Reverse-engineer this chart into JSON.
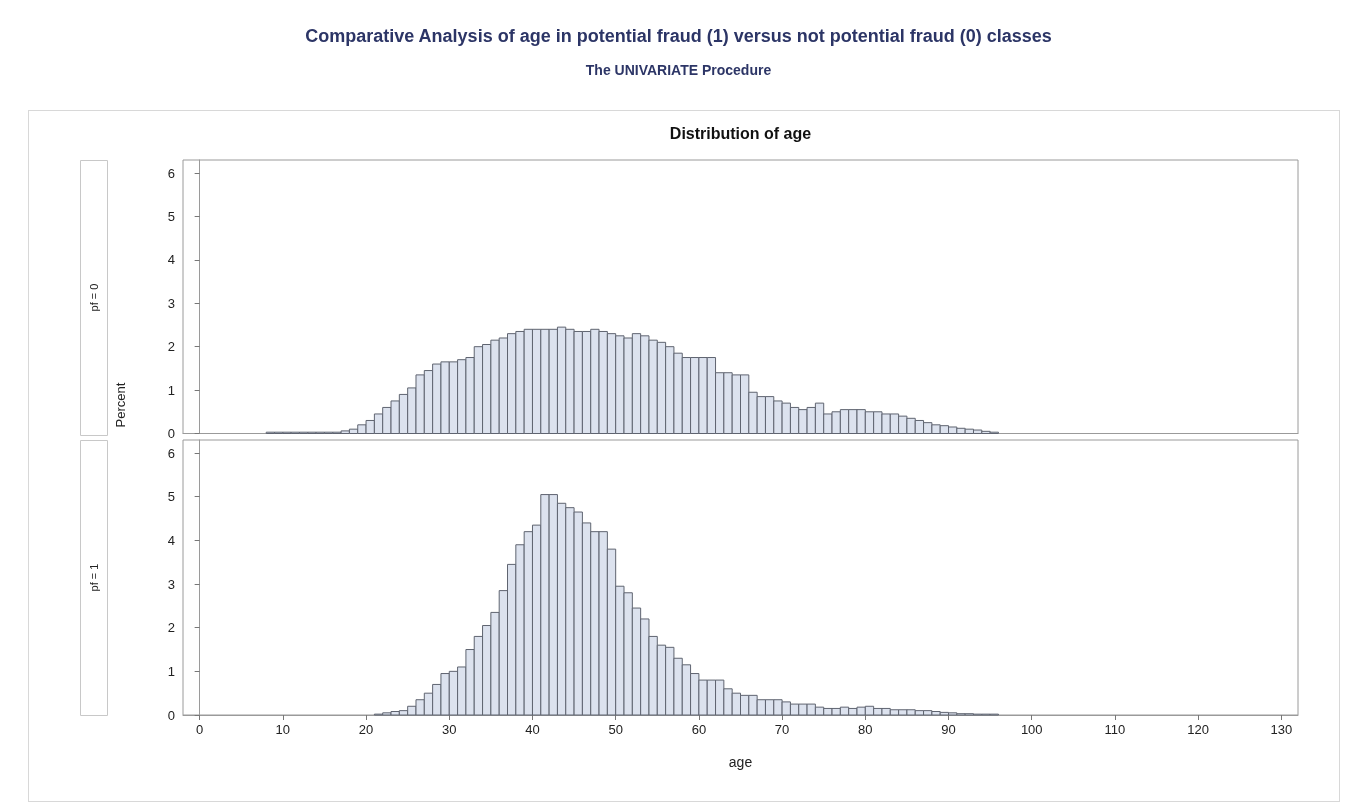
{
  "chart_data": [
    {
      "type": "histogram",
      "title": "Comparative Analysis of age in potential fraud (1) versus not potential fraud (0) classes",
      "subtitle": "The UNIVARIATE Procedure",
      "ylabel": "Percent",
      "annotations": [
        "Distribution of age",
        "pf = 0"
      ],
      "color": "#dce2ee",
      "bins": [
        8,
        9,
        10,
        11,
        12,
        13,
        14,
        15,
        16,
        17,
        18,
        19,
        20,
        21,
        22,
        23,
        24,
        25,
        26,
        27,
        28,
        29,
        30,
        31,
        32,
        33,
        34,
        35,
        36,
        37,
        38,
        39,
        40,
        41,
        42,
        43,
        44,
        45,
        46,
        47,
        48,
        49,
        50,
        51,
        52,
        53,
        54,
        55,
        56,
        57,
        58,
        59,
        60,
        61,
        62,
        63,
        64,
        65,
        66,
        67,
        68,
        69,
        70,
        71,
        72,
        73,
        74,
        75,
        76,
        77,
        78,
        79,
        80,
        81,
        82,
        83,
        84,
        85,
        86,
        87,
        88,
        89,
        90,
        91,
        92,
        93,
        94,
        95,
        96,
        97,
        98
      ],
      "values": [
        0.03,
        0.03,
        0.03,
        0.03,
        0.03,
        0.03,
        0.03,
        0.03,
        0.03,
        0.06,
        0.1,
        0.2,
        0.3,
        0.45,
        0.6,
        0.75,
        0.9,
        1.05,
        1.35,
        1.45,
        1.6,
        1.65,
        1.65,
        1.7,
        1.75,
        2.0,
        2.05,
        2.15,
        2.2,
        2.3,
        2.35,
        2.4,
        2.4,
        2.4,
        2.4,
        2.45,
        2.4,
        2.35,
        2.35,
        2.4,
        2.35,
        2.3,
        2.25,
        2.2,
        2.3,
        2.25,
        2.15,
        2.1,
        2.0,
        1.85,
        1.75,
        1.75,
        1.75,
        1.75,
        1.4,
        1.4,
        1.35,
        1.35,
        0.95,
        0.85,
        0.85,
        0.75,
        0.7,
        0.6,
        0.55,
        0.6,
        0.7,
        0.45,
        0.5,
        0.55,
        0.55,
        0.55,
        0.5,
        0.5,
        0.45,
        0.45,
        0.4,
        0.35,
        0.3,
        0.25,
        0.2,
        0.18,
        0.15,
        0.12,
        0.1,
        0.08,
        0.05,
        0.03,
        null,
        null
      ],
      "xlim": [
        -2,
        132
      ],
      "xticks": [
        0,
        10,
        20,
        30,
        40,
        50,
        60,
        70,
        80,
        90,
        100,
        110,
        120,
        130
      ],
      "ylim": [
        0,
        6.3
      ],
      "yticks": [
        0,
        1,
        2,
        3,
        4,
        5,
        6
      ],
      "tick_labels": "y"
    },
    {
      "type": "histogram",
      "xlabel": "age",
      "annotations": [
        "pf = 1"
      ],
      "color": "#dce2ee",
      "bins": [
        8,
        9,
        10,
        11,
        12,
        13,
        14,
        15,
        16,
        17,
        18,
        19,
        20,
        21,
        22,
        23,
        24,
        25,
        26,
        27,
        28,
        29,
        30,
        31,
        32,
        33,
        34,
        35,
        36,
        37,
        38,
        39,
        40,
        41,
        42,
        43,
        44,
        45,
        46,
        47,
        48,
        49,
        50,
        51,
        52,
        53,
        54,
        55,
        56,
        57,
        58,
        59,
        60,
        61,
        62,
        63,
        64,
        65,
        66,
        67,
        68,
        69,
        70,
        71,
        72,
        73,
        74,
        75,
        76,
        77,
        78,
        79,
        80,
        81,
        82,
        83,
        84,
        85,
        86,
        87,
        88,
        89,
        90,
        91,
        92,
        93,
        94,
        95,
        96,
        97,
        98
      ],
      "values": [
        0,
        0,
        0,
        0,
        0,
        0,
        0,
        0,
        0,
        0,
        0,
        0,
        0,
        0.02,
        0.05,
        0.08,
        0.1,
        0.2,
        0.35,
        0.5,
        0.7,
        0.95,
        1.0,
        1.1,
        1.5,
        1.8,
        2.05,
        2.35,
        2.85,
        3.45,
        3.9,
        4.2,
        4.35,
        5.05,
        5.05,
        4.85,
        4.75,
        4.65,
        4.4,
        4.2,
        4.2,
        3.8,
        2.95,
        2.8,
        2.45,
        2.2,
        1.8,
        1.6,
        1.55,
        1.3,
        1.15,
        0.95,
        0.8,
        0.8,
        0.8,
        0.6,
        0.5,
        0.45,
        0.45,
        0.35,
        0.35,
        0.35,
        0.3,
        0.25,
        0.25,
        0.25,
        0.18,
        0.15,
        0.15,
        0.18,
        0.15,
        0.18,
        0.2,
        0.15,
        0.15,
        0.12,
        0.12,
        0.12,
        0.1,
        0.1,
        0.08,
        0.06,
        0.05,
        0.03,
        0.03,
        0.02,
        0.02,
        0.02,
        0,
        0
      ],
      "xlim": [
        -2,
        132
      ],
      "xticks": [
        0,
        10,
        20,
        30,
        40,
        50,
        60,
        70,
        80,
        90,
        100,
        110,
        120,
        130
      ],
      "ylim": [
        0,
        6.3
      ],
      "yticks": [
        0,
        1,
        2,
        3,
        4,
        5,
        6
      ]
    }
  ]
}
